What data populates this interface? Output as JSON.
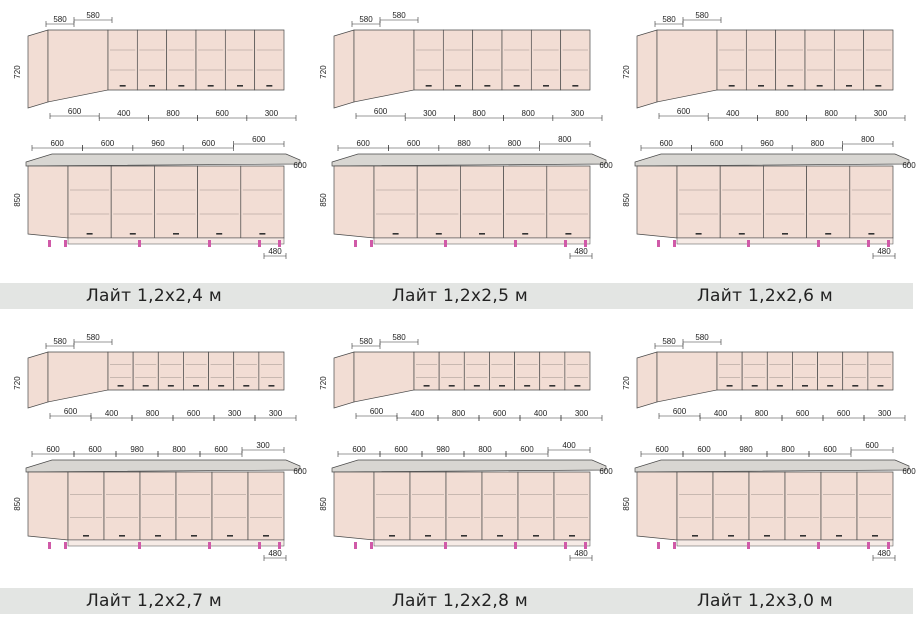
{
  "colors": {
    "cabinet_fill": "#f2ddd4",
    "cabinet_stroke": "#4a4a4a",
    "countertop_fill": "#d8d6d2",
    "leg_color": "#d05aa8",
    "caption_bar": "#e3e5e3"
  },
  "kitchens": [
    {
      "caption": "Лайт 1,2х2,4 м",
      "height_upper": "720",
      "height_lower": "850",
      "depth": "480",
      "upper_top_dims": [
        "580",
        "580"
      ],
      "upper_bottom_dims": [
        "600",
        "400",
        "800",
        "600",
        "300"
      ],
      "lower_top_dims": [
        "600",
        "600",
        "960",
        "600",
        "600"
      ],
      "lower_side_dim": "600"
    },
    {
      "caption": "Лайт 1,2х2,5 м",
      "height_upper": "720",
      "height_lower": "850",
      "depth": "480",
      "upper_top_dims": [
        "580",
        "580"
      ],
      "upper_bottom_dims": [
        "600",
        "300",
        "800",
        "800",
        "300"
      ],
      "lower_top_dims": [
        "600",
        "600",
        "880",
        "800",
        "800"
      ],
      "lower_side_dim": "600"
    },
    {
      "caption": "Лайт 1,2х2,6 м",
      "height_upper": "720",
      "height_lower": "850",
      "depth": "480",
      "upper_top_dims": [
        "580",
        "580"
      ],
      "upper_bottom_dims": [
        "600",
        "400",
        "800",
        "800",
        "300"
      ],
      "lower_top_dims": [
        "600",
        "600",
        "960",
        "800",
        "800"
      ],
      "lower_side_dim": "600"
    },
    {
      "caption": "Лайт 1,2х2,7 м",
      "height_upper": "720",
      "height_lower": "850",
      "depth": "480",
      "upper_top_dims": [
        "580",
        "580"
      ],
      "upper_bottom_dims": [
        "600",
        "400",
        "800",
        "600",
        "300",
        "300"
      ],
      "lower_top_dims": [
        "600",
        "600",
        "980",
        "800",
        "600",
        "300"
      ],
      "lower_side_dim": "600"
    },
    {
      "caption": "Лайт 1,2х2,8 м",
      "height_upper": "720",
      "height_lower": "850",
      "depth": "480",
      "upper_top_dims": [
        "580",
        "580"
      ],
      "upper_bottom_dims": [
        "600",
        "400",
        "800",
        "600",
        "400",
        "300"
      ],
      "lower_top_dims": [
        "600",
        "600",
        "980",
        "800",
        "600",
        "400"
      ],
      "lower_side_dim": "600"
    },
    {
      "caption": "Лайт 1,2х3,0 м",
      "height_upper": "720",
      "height_lower": "850",
      "depth": "480",
      "upper_top_dims": [
        "580",
        "580"
      ],
      "upper_bottom_dims": [
        "600",
        "400",
        "800",
        "600",
        "600",
        "300"
      ],
      "lower_top_dims": [
        "600",
        "600",
        "980",
        "800",
        "600",
        "600"
      ],
      "lower_side_dim": "600"
    }
  ]
}
